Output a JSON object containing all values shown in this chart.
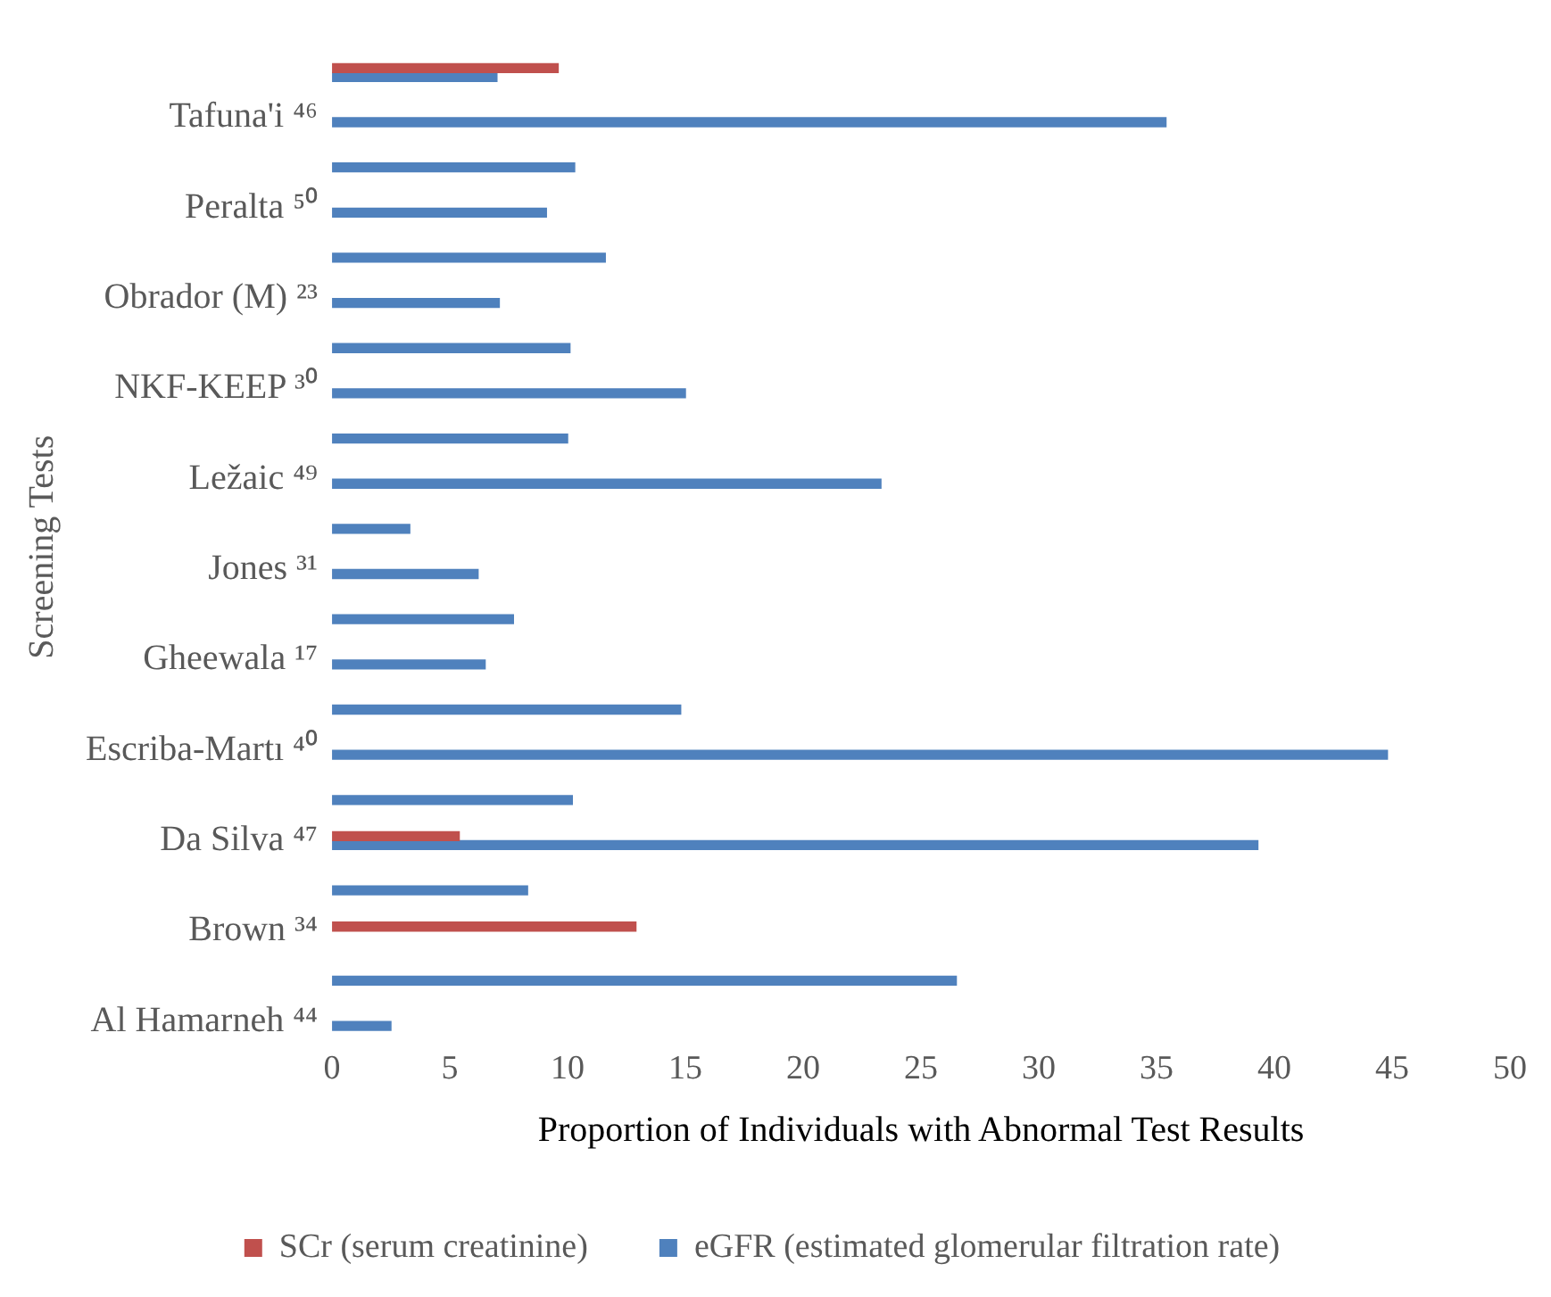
{
  "chart_data": {
    "type": "bar",
    "orientation": "horizontal",
    "xlabel": "Proportion of Individuals with Abnormal Test Results",
    "ylabel": "Screening Tests",
    "categories": [
      null,
      "Tafuna'i ⁴⁶",
      null,
      "Peralta ⁵⁰",
      null,
      "Obrador (M) ²³",
      null,
      "NKF-KEEP ³⁰",
      null,
      "Ležaic ⁴⁹",
      null,
      "Jones ³¹",
      null,
      "Gheewala ¹⁷",
      null,
      "Escriba-Martı ⁴⁰",
      null,
      "Da Silva ⁴⁷",
      null,
      "Brown ³⁴",
      null,
      "Al Hamarneh ⁴⁴"
    ],
    "series": [
      {
        "name": "SCr (serum creatinine)",
        "color": "#c0504d",
        "values": [
          9.6,
          null,
          null,
          null,
          null,
          null,
          null,
          null,
          null,
          null,
          null,
          null,
          null,
          null,
          null,
          null,
          null,
          5.4,
          null,
          12.9,
          null,
          null
        ]
      },
      {
        "name": "eGFR (estimated glomerular filtration rate)",
        "color": "#4f81bd",
        "values": [
          7.0,
          35.4,
          10.3,
          9.1,
          11.6,
          7.1,
          10.1,
          15.0,
          10.0,
          23.3,
          3.3,
          6.2,
          7.7,
          6.5,
          14.8,
          44.8,
          10.2,
          39.3,
          8.3,
          null,
          26.5,
          2.5
        ]
      }
    ],
    "xlim": [
      0,
      50
    ],
    "xticks": [
      0,
      5,
      10,
      15,
      20,
      25,
      30,
      35,
      40,
      45,
      50
    ],
    "grid": false,
    "legend": "bottom"
  }
}
